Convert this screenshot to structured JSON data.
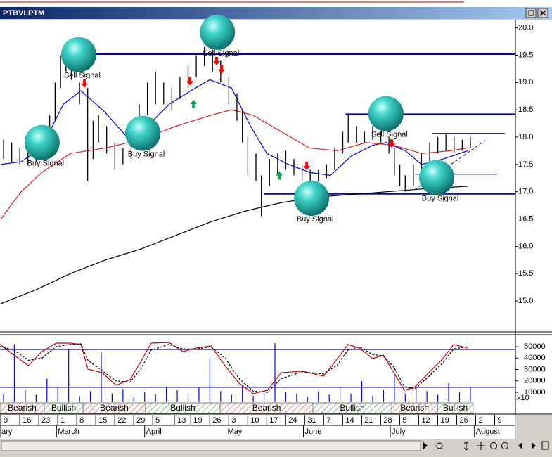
{
  "window_title": "PTBVLPTM",
  "chart_data": {
    "type": "ohlc",
    "xlim": [
      -1.3,
      188.6
    ],
    "xticks": [
      {
        "value": 0,
        "label": "9"
      },
      {
        "value": 7,
        "label": "16"
      },
      {
        "value": 14,
        "label": "23"
      },
      {
        "value": 21,
        "label": "1"
      },
      {
        "value": 28,
        "label": "8"
      },
      {
        "value": 35,
        "label": "15"
      },
      {
        "value": 42,
        "label": "22"
      },
      {
        "value": 49,
        "label": "29"
      },
      {
        "value": 56,
        "label": "5"
      },
      {
        "value": 64,
        "label": "13"
      },
      {
        "value": 70,
        "label": "19"
      },
      {
        "value": 77,
        "label": "26"
      },
      {
        "value": 84,
        "label": "3"
      },
      {
        "value": 91,
        "label": "10"
      },
      {
        "value": 98,
        "label": "17"
      },
      {
        "value": 105,
        "label": "24"
      },
      {
        "value": 112,
        "label": "31"
      },
      {
        "value": 119,
        "label": "7"
      },
      {
        "value": 126,
        "label": "14"
      },
      {
        "value": 133,
        "label": "21"
      },
      {
        "value": 140,
        "label": "28"
      },
      {
        "value": 147,
        "label": "5"
      },
      {
        "value": 154,
        "label": "12"
      },
      {
        "value": 161,
        "label": "19"
      },
      {
        "value": 168,
        "label": "26"
      },
      {
        "value": 175,
        "label": "2"
      },
      {
        "value": 182,
        "label": "9"
      }
    ],
    "month_ticks": [
      {
        "value": -1.3,
        "label": "ary"
      },
      {
        "value": 19.5,
        "label": "March"
      },
      {
        "value": 52,
        "label": "April"
      },
      {
        "value": 82,
        "label": "May"
      },
      {
        "value": 110.5,
        "label": "June"
      },
      {
        "value": 142.5,
        "label": "July"
      },
      {
        "value": 173.5,
        "label": "August"
      }
    ],
    "ylim": [
      14.46,
      20.15
    ],
    "yticks": [
      {
        "value": 15,
        "label": "15.0"
      },
      {
        "value": 15.5,
        "label": "15.5"
      },
      {
        "value": 16,
        "label": "16.0"
      },
      {
        "value": 16.5,
        "label": "16.5"
      },
      {
        "value": 17,
        "label": "17.0"
      },
      {
        "value": 17.5,
        "label": "17.5"
      },
      {
        "value": 18,
        "label": "18.0"
      },
      {
        "value": 18.5,
        "label": "18.5"
      },
      {
        "value": 19,
        "label": "19.0"
      },
      {
        "value": 19.5,
        "label": "19.5"
      },
      {
        "value": 20,
        "label": "20.0"
      }
    ],
    "bar_color": "#000000",
    "x": [
      0,
      3,
      6,
      9,
      12,
      15,
      17,
      19,
      21,
      23,
      25,
      28,
      31,
      33,
      35,
      38,
      41,
      44,
      47,
      50,
      53,
      56,
      59,
      62,
      65,
      68,
      71,
      74,
      77,
      80,
      83,
      86,
      88,
      90,
      93,
      95,
      98,
      101,
      104,
      107,
      110,
      113,
      116,
      119,
      122,
      125,
      127,
      130,
      133,
      136,
      139,
      142,
      144,
      146,
      148,
      151,
      154,
      157,
      160,
      163,
      166,
      169,
      172
    ],
    "high": [
      17.95,
      17.9,
      17.8,
      17.75,
      17.8,
      18.0,
      18.4,
      19.0,
      19.5,
      19.6,
      19.45,
      19.0,
      18.9,
      18.3,
      18.4,
      18.2,
      17.9,
      17.8,
      18.1,
      18.6,
      19.0,
      19.2,
      19.0,
      18.9,
      19.1,
      19.3,
      19.5,
      19.65,
      19.6,
      19.4,
      19.1,
      18.8,
      18.5,
      18.0,
      17.7,
      17.3,
      17.6,
      17.7,
      17.75,
      17.6,
      17.5,
      17.4,
      17.4,
      17.5,
      17.8,
      18.1,
      18.4,
      18.2,
      18.1,
      18.2,
      18.1,
      18.0,
      17.8,
      17.5,
      17.3,
      17.5,
      17.7,
      17.9,
      18.0,
      18.05,
      18.0,
      17.95,
      18.0
    ],
    "low": [
      17.6,
      17.55,
      17.5,
      17.5,
      17.55,
      17.6,
      17.9,
      18.3,
      18.9,
      19.2,
      19.05,
      18.6,
      17.2,
      17.6,
      17.9,
      17.7,
      17.4,
      17.5,
      17.6,
      18.0,
      18.4,
      18.6,
      18.6,
      18.5,
      18.7,
      18.9,
      19.1,
      19.3,
      19.2,
      19.0,
      18.6,
      18.3,
      17.9,
      17.3,
      17.2,
      16.55,
      17.1,
      17.3,
      17.4,
      17.3,
      17.2,
      17.15,
      17.2,
      17.25,
      17.4,
      17.7,
      17.9,
      17.9,
      17.9,
      17.95,
      17.9,
      17.7,
      17.3,
      17.1,
      17.0,
      17.1,
      17.3,
      17.5,
      17.7,
      17.75,
      17.7,
      17.75,
      17.8
    ],
    "overlays": [
      {
        "color": "#0000ff",
        "x": [
          -1,
          6.5,
          14,
          22,
          28.5,
          37.5,
          45.5,
          53,
          61,
          69,
          76,
          84,
          91,
          97,
          105,
          113,
          120.5,
          128,
          136,
          141,
          148,
          154,
          162,
          171
        ],
        "values": [
          17.5,
          17.55,
          17.8,
          18.6,
          18.85,
          18.45,
          18.0,
          18.2,
          18.6,
          18.85,
          19.05,
          18.9,
          18.2,
          17.7,
          17.5,
          17.35,
          17.3,
          17.65,
          17.85,
          17.9,
          17.75,
          17.5,
          17.6,
          17.75
        ]
      },
      {
        "color": "#e02020",
        "x": [
          -1,
          6.5,
          14,
          24.6,
          37.5,
          50.5,
          63.5,
          76.4,
          84,
          92,
          102.3,
          112.7,
          123,
          133.5,
          143.8,
          154.1,
          164.5,
          171
        ],
        "values": [
          16.5,
          17.0,
          17.35,
          17.7,
          17.8,
          17.95,
          18.2,
          18.4,
          18.5,
          18.4,
          18.1,
          17.8,
          17.75,
          17.9,
          17.85,
          17.7,
          17.75,
          17.8
        ]
      },
      {
        "color": "#000000",
        "x": [
          -1,
          11.7,
          24.6,
          37.5,
          50.5,
          63.5,
          76.4,
          89.4,
          102.3,
          115.3,
          128.2,
          141.2,
          154.1,
          171
        ],
        "values": [
          14.95,
          15.2,
          15.5,
          15.75,
          15.95,
          16.2,
          16.45,
          16.65,
          16.8,
          16.9,
          16.95,
          17.0,
          17.05,
          17.1
        ]
      }
    ],
    "levels": [
      {
        "value": 19.52,
        "from": 22,
        "to": 188.6,
        "color": "#0000cc"
      },
      {
        "value": 18.42,
        "from": 126,
        "to": 188.6,
        "color": "#0000cc"
      },
      {
        "value": 16.96,
        "from": 96,
        "to": 188.6,
        "color": "#0000cc"
      },
      {
        "value": 18.07,
        "from": 158,
        "to": 184.7,
        "color": "#0000cc"
      },
      {
        "value": 17.32,
        "from": 151.6,
        "to": 181.9,
        "color": "#0000cc"
      }
    ],
    "trendline": {
      "color": "#0000cc",
      "x": [
        151.6,
        177.5
      ],
      "values": [
        17.04,
        17.94
      ]
    },
    "signals": [
      {
        "text": "Buy Signal",
        "x": 14.2,
        "y": 17.9
      },
      {
        "text": "Sell Signal",
        "x": 27.7,
        "y": 19.51
      },
      {
        "text": "Sell Signal",
        "x": 78.8,
        "y": 19.92
      },
      {
        "text": "Buy Signal",
        "x": 51.3,
        "y": 18.07
      },
      {
        "text": "Buy Signal",
        "x": 113.5,
        "y": 16.88
      },
      {
        "text": "Sell Signal",
        "x": 140.9,
        "y": 18.43
      },
      {
        "text": "Buy Signal",
        "x": 159.6,
        "y": 17.26
      }
    ],
    "arrows_down": {
      "color": "#ff0000",
      "x": [
        29.8,
        68.7,
        78.5,
        80.3,
        111.7,
        143
      ],
      "values": [
        18.97,
        19.01,
        19.38,
        19.23,
        17.46,
        17.87
      ]
    },
    "arrows_up": {
      "color": "#00b050",
      "x": [
        70,
        101.6
      ],
      "values": [
        18.62,
        17.31
      ]
    },
    "lower": {
      "ylim": [
        1400,
        58000
      ],
      "yticks": [
        10000,
        20000,
        30000,
        40000,
        50000
      ],
      "unit_label": "x10",
      "levels": [
        47500,
        14300
      ],
      "level_color": "#0000cc",
      "volume": {
        "color": "#0000ff",
        "x": [
          0,
          4,
          8,
          12,
          16,
          20,
          24,
          28,
          32,
          36,
          40,
          44,
          48,
          52,
          56,
          60,
          64,
          68,
          72,
          76,
          80,
          84,
          88,
          92,
          96,
          100,
          104,
          108,
          112,
          116,
          120,
          124,
          128,
          132,
          136,
          140,
          144,
          148,
          152,
          156,
          160,
          164,
          168,
          172
        ],
        "values": [
          9000,
          52000,
          12000,
          8000,
          22000,
          14000,
          48000,
          7000,
          11000,
          45000,
          9000,
          13000,
          6000,
          10000,
          8000,
          15000,
          12000,
          9000,
          14000,
          40000,
          11000,
          8000,
          16000,
          7000,
          12000,
          53000,
          10000,
          9000,
          6000,
          11000,
          8000,
          14000,
          9000,
          20000,
          7000,
          12000,
          25000,
          9000,
          16000,
          11000,
          8000,
          18000,
          10000,
          15000
        ]
      },
      "series": [
        {
          "color": "#cc0000",
          "dashed": false,
          "x": [
            -1.3,
            3.9,
            9.1,
            14.2,
            19.4,
            24.6,
            28.5,
            31.1,
            36.3,
            41.5,
            46.6,
            50.5,
            54.4,
            60.9,
            66.1,
            71.2,
            76.4,
            81.6,
            86.8,
            92,
            97.2,
            102.3,
            110.1,
            117.9,
            123,
            126.9,
            131.1,
            136,
            139.9,
            143.8,
            147.7,
            151.6,
            156.7,
            161.9,
            165.8,
            171
          ],
          "values": [
            51850,
            42600,
            33400,
            45700,
            53100,
            53100,
            51850,
            30300,
            27200,
            16200,
            21100,
            36500,
            53100,
            53700,
            45700,
            48800,
            50600,
            33400,
            18000,
            8800,
            11800,
            27200,
            28500,
            24200,
            39500,
            51850,
            48800,
            39500,
            42600,
            27200,
            11800,
            14900,
            27200,
            39500,
            51850,
            48800
          ]
        },
        {
          "color": "#000000",
          "dashed": true,
          "x": [
            -1.3,
            3.9,
            9.1,
            14.2,
            19.4,
            24.6,
            28.5,
            31.1,
            36.3,
            41.5,
            46.6,
            50.5,
            54.4,
            60.9,
            66.1,
            71.2,
            76.4,
            81.6,
            86.8,
            92,
            97.2,
            102.3,
            110.1,
            117.9,
            123,
            126.9,
            131.1,
            136,
            139.9,
            143.8,
            147.7,
            151.6,
            156.7,
            161.9,
            165.8,
            171
          ],
          "values": [
            50000,
            47000,
            38000,
            40000,
            50000,
            52000,
            52500,
            38000,
            29000,
            20000,
            19000,
            30000,
            47000,
            52000,
            48000,
            48000,
            50000,
            40000,
            22000,
            11000,
            10000,
            22000,
            28000,
            26000,
            34000,
            47000,
            50000,
            43000,
            42000,
            32000,
            15000,
            13000,
            24000,
            36000,
            48000,
            50000
          ]
        }
      ]
    },
    "sentiment": [
      {
        "label": "Bearish",
        "from": -1.3,
        "to": 15,
        "color": "#e04040"
      },
      {
        "label": "Bullish",
        "from": 15,
        "to": 29.3,
        "color": "#40a040"
      },
      {
        "label": "Bearish",
        "from": 29.3,
        "to": 52.3,
        "color": "#e04040"
      },
      {
        "label": "Bullish",
        "from": 52.3,
        "to": 79.8,
        "color": "#40a040"
      },
      {
        "label": "Bearish",
        "from": 79.8,
        "to": 114,
        "color": "#e04040"
      },
      {
        "label": "Bullish",
        "from": 114,
        "to": 143,
        "color": "#40a040"
      },
      {
        "label": "Bearish",
        "from": 143,
        "to": 159.9,
        "color": "#e04040"
      },
      {
        "label": "Bullish",
        "from": 159.9,
        "to": 173,
        "color": "#40a040"
      }
    ]
  }
}
